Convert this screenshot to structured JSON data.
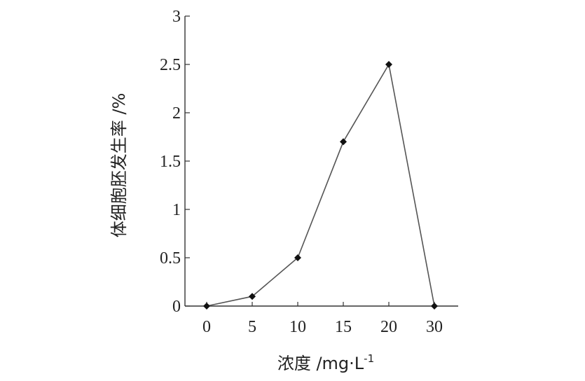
{
  "chart_data": {
    "type": "line",
    "categories": [
      "0",
      "5",
      "10",
      "15",
      "20",
      "30"
    ],
    "series": [
      {
        "values": [
          0,
          0.1,
          0.5,
          1.7,
          2.5,
          0
        ]
      }
    ],
    "ylim": [
      0,
      3
    ],
    "yticks": [
      "0",
      "0.5",
      "1",
      "1.5",
      "2",
      "2.5",
      "3"
    ],
    "xlabel": "浓度 /mg·L",
    "xlabel_sup": "-1",
    "ylabel": "体细胞胚发生率 /%",
    "grid": false,
    "colors": {
      "line": "#555555",
      "marker": "#111111",
      "axis": "#333333"
    }
  }
}
